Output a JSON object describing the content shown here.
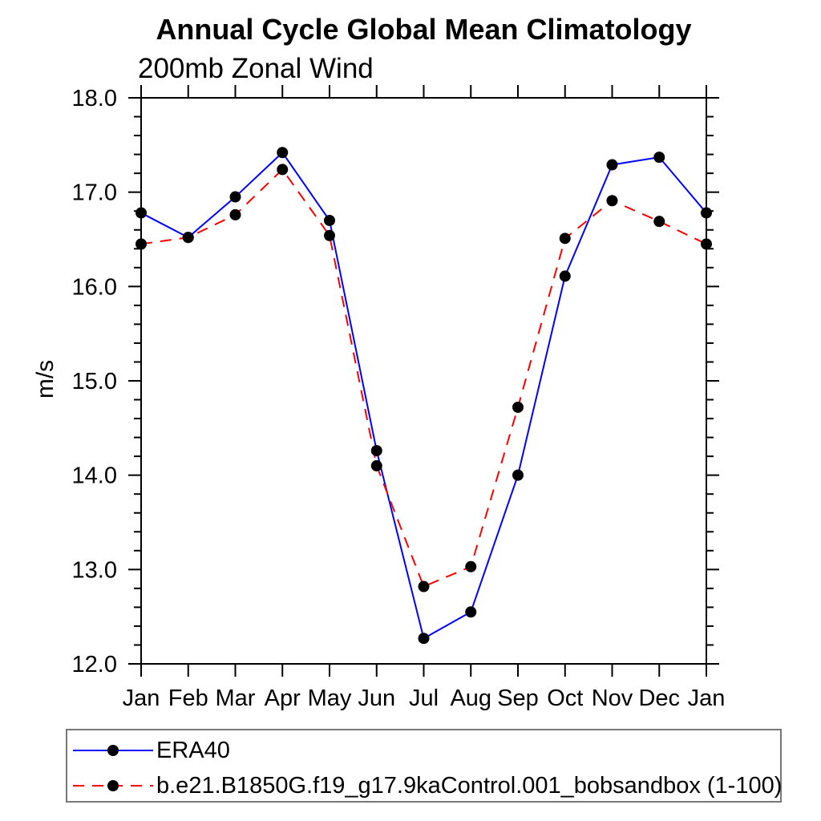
{
  "page": {
    "background": "#ffffff"
  },
  "chart_data": {
    "type": "line",
    "title": "Annual Cycle Global Mean Climatology",
    "subtitle": "200mb Zonal Wind",
    "xlabel": "",
    "ylabel": "m/s",
    "categories": [
      "Jan",
      "Feb",
      "Mar",
      "Apr",
      "May",
      "Jun",
      "Jul",
      "Aug",
      "Sep",
      "Oct",
      "Nov",
      "Dec",
      "Jan"
    ],
    "ylim": [
      12.0,
      18.0
    ],
    "y_ticks": [
      12.0,
      13.0,
      14.0,
      15.0,
      16.0,
      17.0,
      18.0
    ],
    "y_tick_labels": [
      "12.0",
      "13.0",
      "14.0",
      "15.0",
      "16.0",
      "17.0",
      "18.0"
    ],
    "minor_tick_step": 0.2,
    "grid": false,
    "legend_position": "bottom",
    "frame_color": "#000000",
    "marker_color": "#000000",
    "series": [
      {
        "name": "ERA40",
        "color": "#0000ff",
        "style": "solid",
        "marker": "filled-circle",
        "values": [
          16.78,
          16.52,
          16.95,
          17.42,
          16.7,
          14.26,
          12.27,
          12.55,
          14.0,
          16.11,
          17.29,
          17.37,
          16.78
        ]
      },
      {
        "name": "b.e21.B1850G.f19_g17.9kaControl.001_bobsandbox (1-100)",
        "color": "#ff0000",
        "style": "dashed",
        "marker": "filled-circle",
        "values": [
          16.45,
          16.52,
          16.76,
          17.24,
          16.54,
          14.1,
          12.82,
          13.03,
          14.72,
          16.51,
          16.91,
          16.69,
          16.45
        ]
      }
    ]
  }
}
